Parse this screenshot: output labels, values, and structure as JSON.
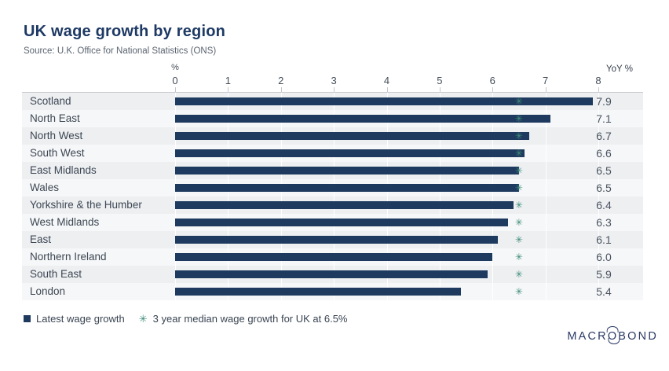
{
  "header": {
    "title": "UK wage growth by region",
    "source": "Source: U.K. Office for National Statistics (ONS)"
  },
  "axis": {
    "unit_label": "%",
    "right_label": "YoY %",
    "ticks": [
      "0",
      "1",
      "2",
      "3",
      "4",
      "5",
      "6",
      "7",
      "8"
    ],
    "min": 0,
    "max": 8
  },
  "chart_data": {
    "type": "bar",
    "orientation": "horizontal",
    "title": "UK wage growth by region",
    "xlabel": "%",
    "xlim": [
      0,
      8
    ],
    "grid": true,
    "legend_position": "bottom",
    "categories": [
      "Scotland",
      "North East",
      "North West",
      "South West",
      "East Midlands",
      "Wales",
      "Yorkshire & the Humber",
      "West Midlands",
      "East",
      "Northern Ireland",
      "South East",
      "London"
    ],
    "values": [
      7.9,
      7.1,
      6.7,
      6.6,
      6.5,
      6.5,
      6.4,
      6.3,
      6.1,
      6.0,
      5.9,
      5.4
    ],
    "value_labels": [
      "7.9",
      "7.1",
      "6.7",
      "6.6",
      "6.5",
      "6.5",
      "6.4",
      "6.3",
      "6.1",
      "6.0",
      "5.9",
      "5.4"
    ],
    "series_name": "Latest wage growth",
    "median_marker": {
      "value": 6.5,
      "label": "3 year median wage growth for UK at 6.5%"
    }
  },
  "legend": {
    "items": [
      {
        "label": "Latest wage growth",
        "marker": "square"
      },
      {
        "label": "3 year median wage growth for UK at 6.5%",
        "marker": "asterisk"
      }
    ]
  },
  "logo": {
    "prefix": "MACR",
    "o": "O",
    "suffix": "BOND"
  },
  "colors": {
    "bar": "#1e3a5f",
    "marker": "#3f8d7a",
    "title": "#1d3964",
    "row_alt": "#edeff1",
    "row_plain": "#f6f7f8",
    "axis_line": "#c9ccd1"
  },
  "icons": {
    "median_marker_glyph": "✳",
    "legend_square_glyph": "■"
  }
}
